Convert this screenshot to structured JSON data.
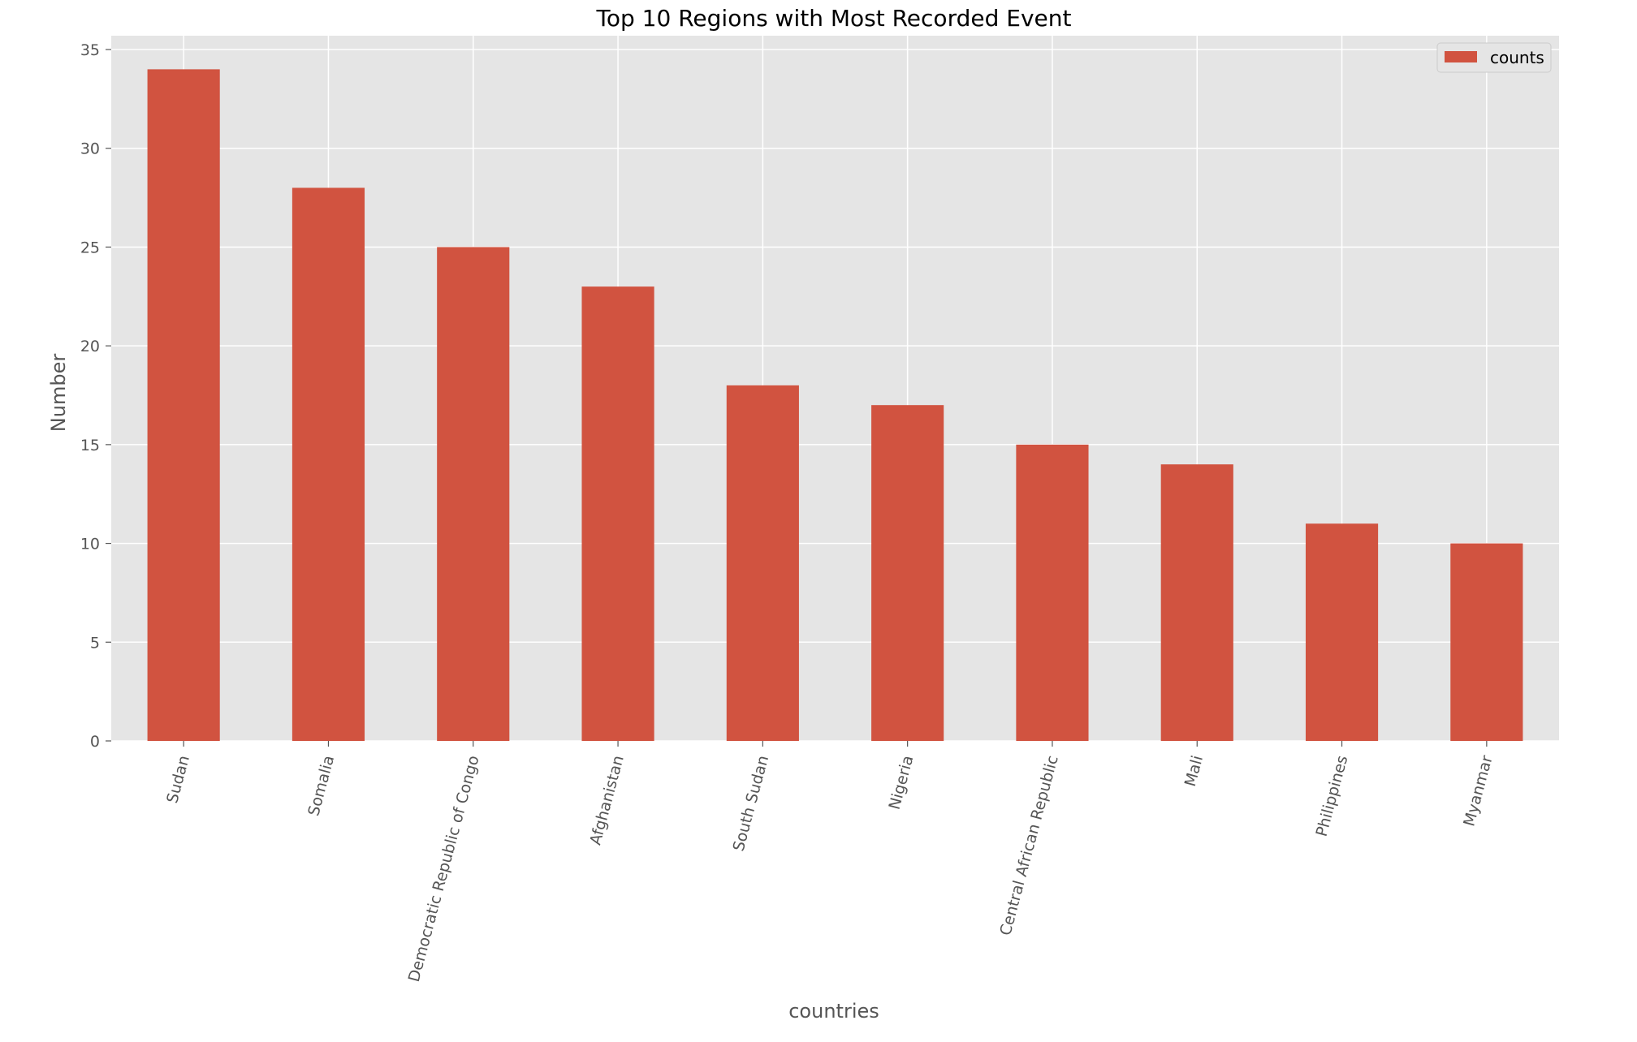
{
  "chart_data": {
    "type": "bar",
    "title": "Top 10 Regions with Most Recorded Event",
    "xlabel": "countries",
    "ylabel": "Number",
    "categories": [
      "Sudan",
      "Somalia",
      "Democratic Republic of Congo",
      "Afghanistan",
      "South Sudan",
      "Nigeria",
      "Central African Republic",
      "Mali",
      "Philippines",
      "Myanmar"
    ],
    "series": [
      {
        "name": "counts",
        "values": [
          34,
          28,
          25,
          23,
          18,
          17,
          15,
          14,
          11,
          10
        ]
      }
    ],
    "ylim": [
      0,
      35.7
    ],
    "yticks": [
      0,
      5,
      10,
      15,
      20,
      25,
      30,
      35
    ],
    "grid": true,
    "legend_position": "top-right",
    "colors": {
      "bar": "#d15340",
      "plot_background": "#e5e5e5",
      "grid": "#ffffff",
      "text": "#555555"
    }
  }
}
